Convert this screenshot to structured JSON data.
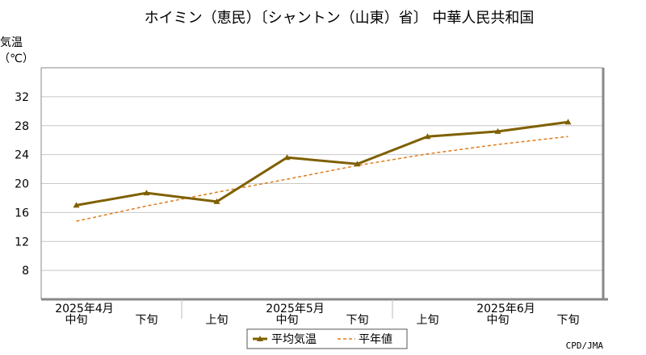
{
  "chart_data": {
    "type": "line",
    "title": "ホイミン（恵民）〔シャントン（山東）省〕 中華人民共和国",
    "ylabel_line1": "気温",
    "ylabel_line2": "（℃）",
    "ylim": [
      4,
      36
    ],
    "yticks": [
      8,
      12,
      16,
      20,
      24,
      28,
      32
    ],
    "grid": true,
    "x": [
      "中旬",
      "下旬",
      "上旬",
      "中旬",
      "下旬",
      "上旬",
      "中旬",
      "下旬"
    ],
    "month_labels": [
      {
        "label": "2025年4月",
        "index": 0
      },
      {
        "label": "2025年5月",
        "index": 3
      },
      {
        "label": "2025年6月",
        "index": 6
      }
    ],
    "month_boundaries": [
      2,
      5
    ],
    "series": [
      {
        "name": "平均気温",
        "color": "#7f6000",
        "style": "solid",
        "values": [
          17.0,
          18.7,
          17.5,
          23.6,
          22.7,
          26.5,
          27.2,
          28.5
        ]
      },
      {
        "name": "平年値",
        "color": "#e07b1a",
        "style": "dashed",
        "values": [
          14.8,
          16.9,
          18.8,
          20.6,
          22.5,
          24.1,
          25.4,
          26.5
        ]
      }
    ],
    "legend_position": "bottom-center",
    "credit": "CPD/JMA"
  }
}
